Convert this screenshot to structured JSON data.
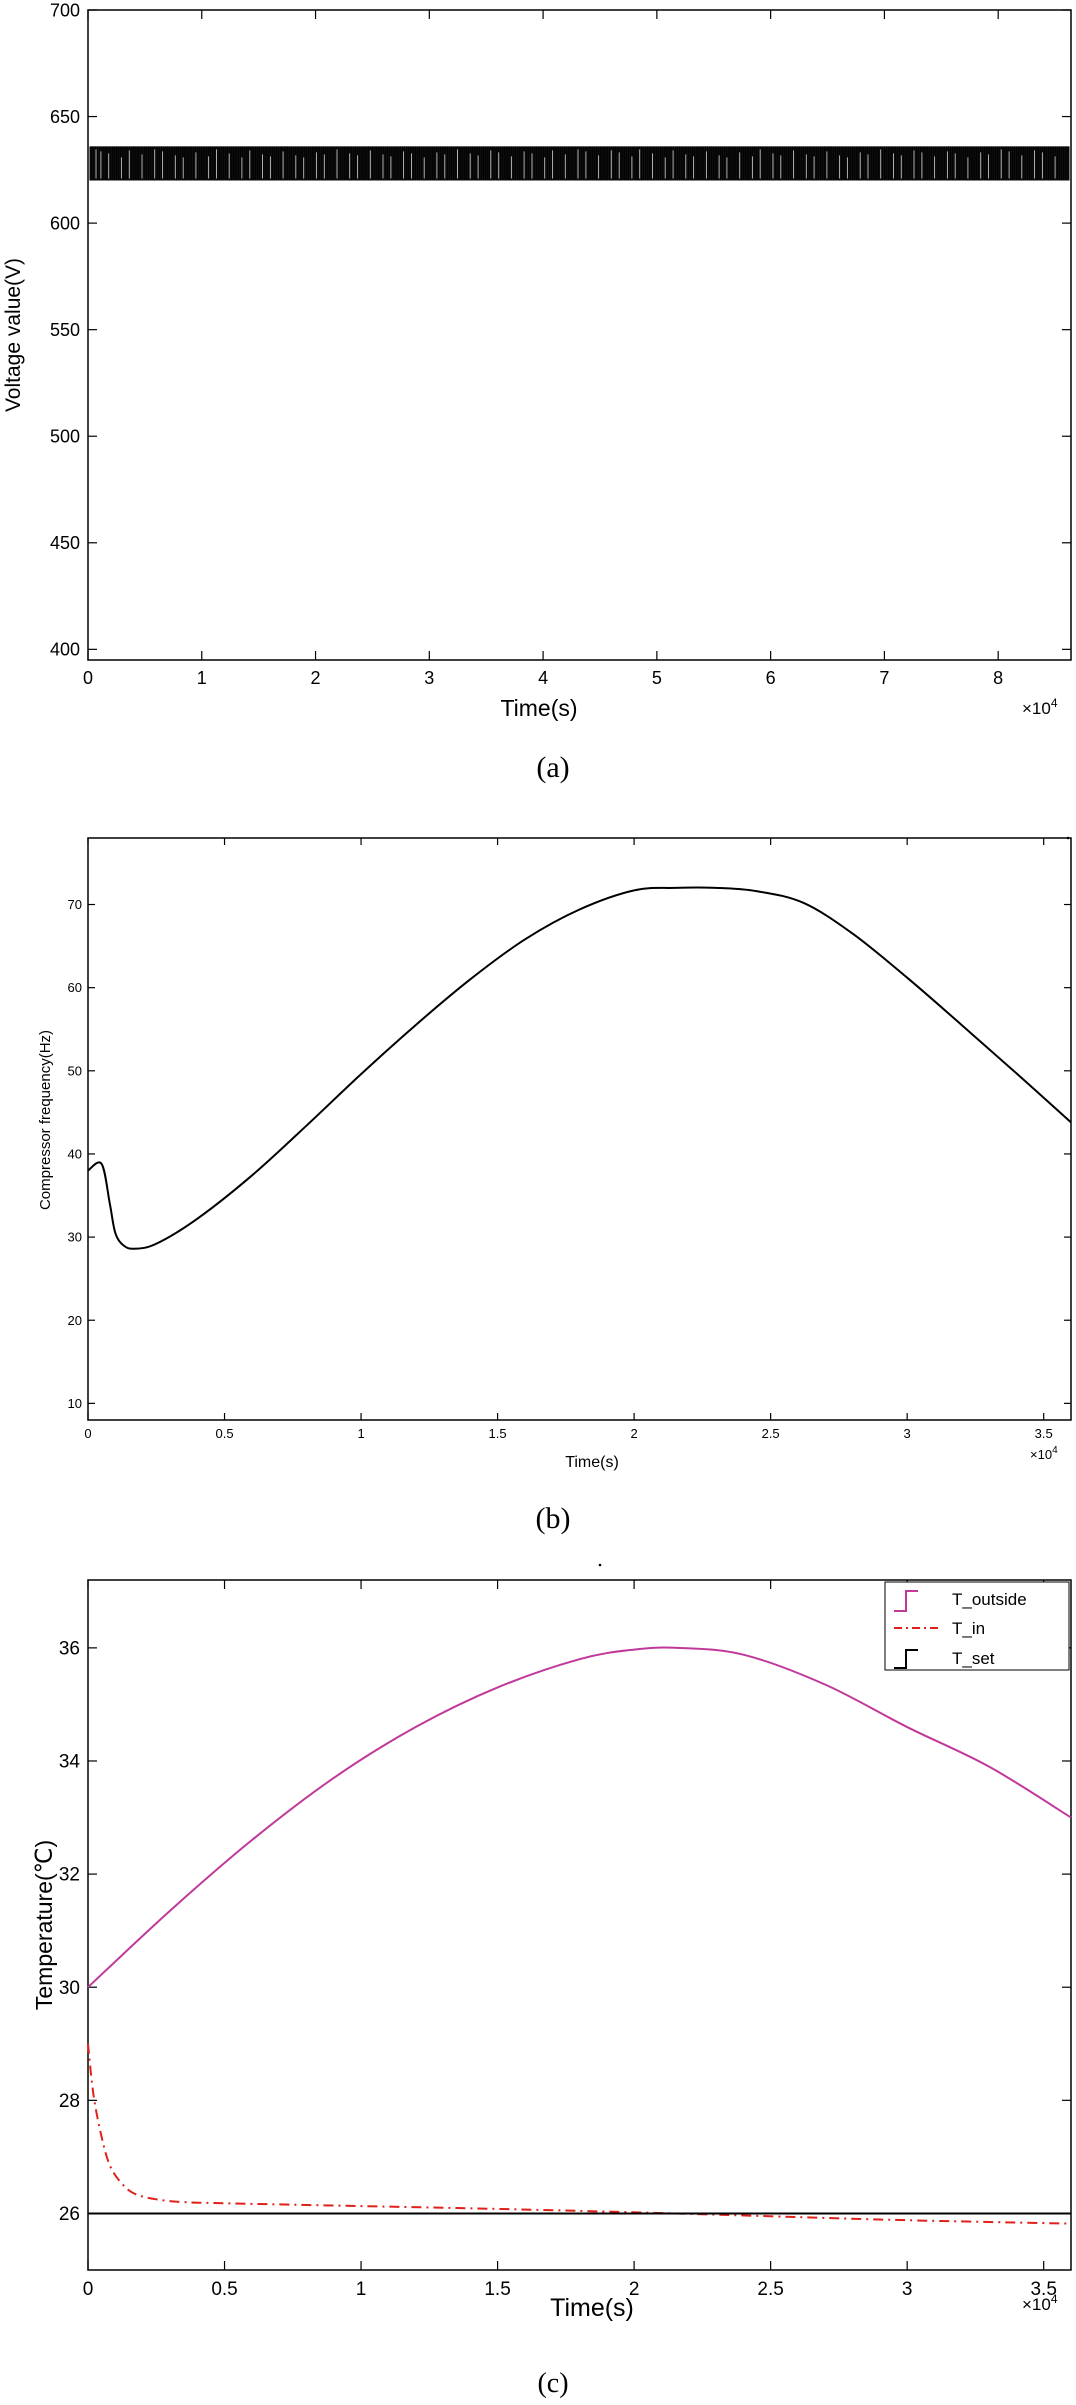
{
  "chart_data": [
    {
      "type": "line",
      "panel_label": "(a)",
      "xlabel": "Time(s)",
      "ylabel": "Voltage value(V)",
      "x_exponent_label": "×10",
      "x_exponent_power": "4",
      "xlim": [
        0,
        8.64
      ],
      "ylim": [
        395,
        700
      ],
      "xticks": [
        0,
        1,
        2,
        3,
        4,
        5,
        6,
        7,
        8
      ],
      "yticks": [
        400,
        450,
        500,
        550,
        600,
        650,
        700
      ],
      "series": [
        {
          "band_low": 620,
          "band_high": 636,
          "pattern": "rapid oscillation"
        }
      ],
      "colors": {
        "line": "#000000"
      }
    },
    {
      "type": "line",
      "panel_label": "(b)",
      "xlabel": "Time(s)",
      "ylabel": "Compressor frequency(Hz)",
      "x_exponent_label": "×10",
      "x_exponent_power": "4",
      "xlim": [
        0,
        3.6
      ],
      "ylim": [
        8,
        78
      ],
      "xticks": [
        0,
        0.5,
        1,
        1.5,
        2,
        2.5,
        3,
        3.5
      ],
      "yticks": [
        10,
        20,
        30,
        40,
        50,
        60,
        70
      ],
      "series": [
        {
          "x": [
            0,
            0.05,
            0.08,
            0.1,
            0.13,
            0.17,
            0.25,
            0.4,
            0.6,
            0.8,
            1.0,
            1.2,
            1.4,
            1.6,
            1.8,
            2.0,
            2.15,
            2.3,
            2.45,
            2.62,
            2.8,
            3.0,
            3.2,
            3.4,
            3.6
          ],
          "y": [
            38,
            38.8,
            34,
            30.5,
            29,
            28.6,
            29.2,
            32.2,
            37.4,
            43.4,
            49.6,
            55.5,
            61,
            65.8,
            69.4,
            71.7,
            72,
            72,
            71.6,
            70.2,
            66.5,
            61.2,
            55.5,
            49.7,
            43.8
          ]
        }
      ],
      "colors": {
        "line": "#000000"
      }
    },
    {
      "type": "line",
      "panel_label": "(c)",
      "xlabel": "Time(s)",
      "ylabel": "Temperature(℃)",
      "x_exponent_label": "×10",
      "x_exponent_power": "4",
      "xlim": [
        0,
        3.6
      ],
      "ylim": [
        25,
        37.2
      ],
      "xticks": [
        0,
        0.5,
        1,
        1.5,
        2,
        2.5,
        3,
        3.5
      ],
      "yticks": [
        26,
        28,
        30,
        32,
        34,
        36
      ],
      "legend_position": "top-right",
      "series": [
        {
          "name": "T_outside",
          "color": "#c0399a",
          "x": [
            0,
            0.3,
            0.6,
            0.9,
            1.2,
            1.5,
            1.8,
            2.0,
            2.16,
            2.4,
            2.7,
            3.0,
            3.3,
            3.6
          ],
          "y": [
            30,
            31.35,
            32.6,
            33.7,
            34.6,
            35.3,
            35.8,
            35.97,
            36,
            35.88,
            35.35,
            34.6,
            33.9,
            33
          ]
        },
        {
          "name": "T_in",
          "color": "#e0211b",
          "x": [
            0,
            0.02,
            0.05,
            0.08,
            0.12,
            0.17,
            0.25,
            0.35,
            0.5,
            1.0,
            1.5,
            2.0,
            2.5,
            3.0,
            3.6
          ],
          "y": [
            29,
            28.1,
            27.35,
            26.85,
            26.55,
            26.35,
            26.25,
            26.2,
            26.18,
            26.13,
            26.08,
            26.02,
            25.95,
            25.88,
            25.82
          ]
        },
        {
          "name": "T_set",
          "color": "#000000",
          "x": [
            0,
            3.6
          ],
          "y": [
            26,
            26
          ]
        }
      ]
    }
  ]
}
